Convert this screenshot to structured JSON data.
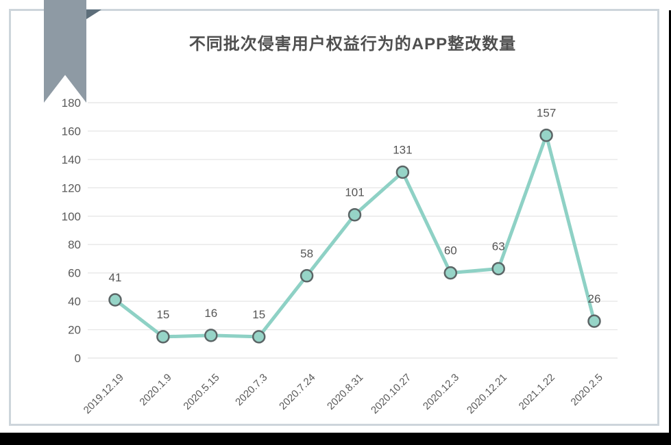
{
  "page": {
    "title": "不同批次侵害用户权益行为的APP整改数量"
  },
  "chart_data": {
    "type": "line",
    "title": "不同批次侵害用户权益行为的APP整改数量",
    "categories": [
      "2019.12.19",
      "2020.1.9",
      "2020.5.15",
      "2020.7.3",
      "2020.7.24",
      "2020.8.31",
      "2020.10.27",
      "2020.12.3",
      "2020.12.21",
      "2021.1.22",
      "2020.2.5"
    ],
    "values": [
      41,
      15,
      16,
      15,
      58,
      101,
      131,
      60,
      63,
      157,
      26
    ],
    "ylim": [
      0,
      180
    ],
    "ytick_step": 20,
    "grid": true,
    "legend": "none",
    "data_labels": true,
    "colors": {
      "line": "#8ed1c5",
      "marker_fill": "#96d4c7",
      "marker_stroke": "#5b6566",
      "grid": "#e7e7e7",
      "axis_text": "#595959",
      "value_label": "#555555"
    }
  },
  "decor": {
    "ribbon_color": "#8e9aa4",
    "ribbon_fold_color": "#5d6e7a",
    "card_border_color": "#cdd5db",
    "bottom_bar_color": "#000000"
  }
}
